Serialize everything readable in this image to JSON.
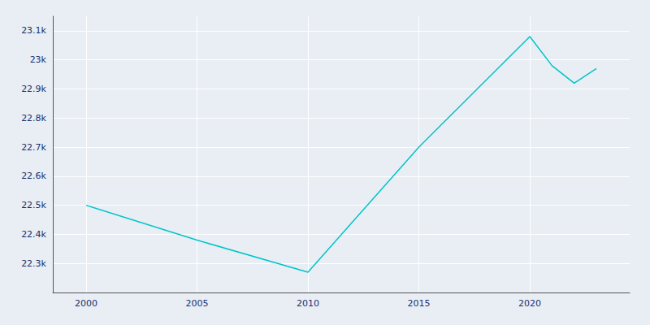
{
  "chart_data": {
    "type": "line",
    "x": [
      2000,
      2005,
      2010,
      2015,
      2020,
      2021,
      2022,
      2023
    ],
    "values": [
      22500,
      22380,
      22270,
      22700,
      23080,
      22980,
      22920,
      22970
    ],
    "color": "#00C4C8",
    "xlim": [
      1998.5,
      2024.5
    ],
    "xticks": [
      2000,
      2005,
      2010,
      2015,
      2020
    ],
    "ylim": [
      22200,
      23150
    ],
    "yticks": [
      {
        "value": 22300,
        "label": "22.3k"
      },
      {
        "value": 22400,
        "label": "22.4k"
      },
      {
        "value": 22500,
        "label": "22.5k"
      },
      {
        "value": 22600,
        "label": "22.6k"
      },
      {
        "value": 22700,
        "label": "22.7k"
      },
      {
        "value": 22800,
        "label": "22.8k"
      },
      {
        "value": 22900,
        "label": "22.9k"
      },
      {
        "value": 23000,
        "label": "23k"
      },
      {
        "value": 23100,
        "label": "23.1k"
      }
    ],
    "grid": true
  }
}
